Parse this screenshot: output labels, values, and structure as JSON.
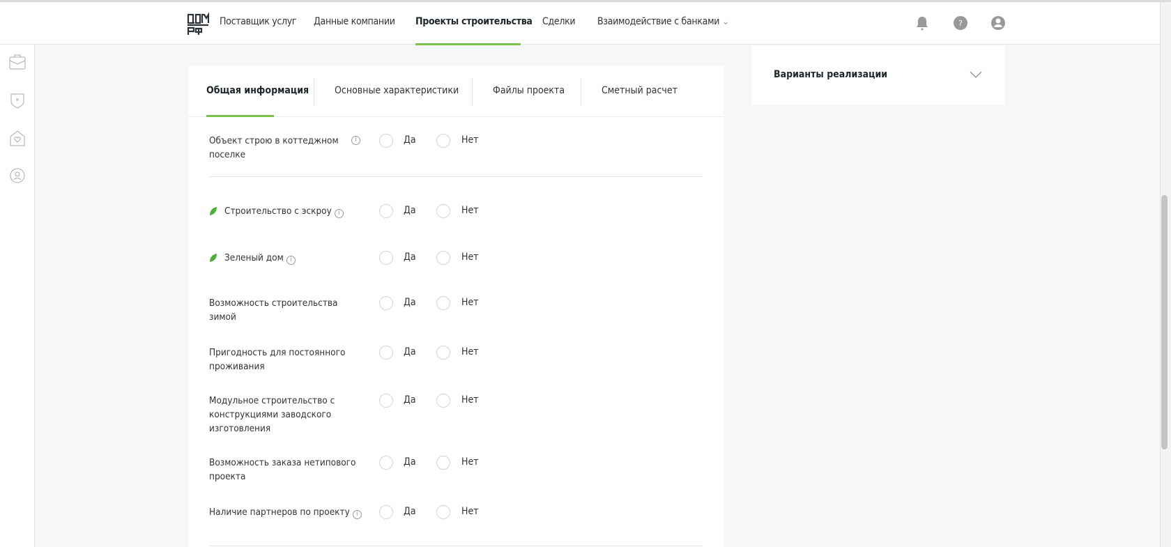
{
  "header": {
    "nav": [
      {
        "label": "Поставщик услуг"
      },
      {
        "label": "Данные компании"
      },
      {
        "label": "Проекты строительства",
        "active": true
      },
      {
        "label": "Сделки"
      },
      {
        "label": "Взаимодействие с банками",
        "dropdown": true
      }
    ],
    "icons": [
      "bell-icon",
      "help-icon",
      "user-icon"
    ]
  },
  "sidebar": {
    "icons": [
      "briefcase-icon",
      "shield-icon",
      "house-heart-icon",
      "person-badge-icon"
    ]
  },
  "tabs": [
    {
      "label": "Общая информация",
      "active": true
    },
    {
      "label": "Основные характеристики"
    },
    {
      "label": "Файлы проекта"
    },
    {
      "label": "Сметный расчет"
    }
  ],
  "options": {
    "yes": "Да",
    "no": "Нет"
  },
  "rows": [
    {
      "label": "Объект строю в коттеджном поселке",
      "info": true,
      "leaf": false
    },
    {
      "label": "Строительство с эскроу",
      "info": true,
      "leaf": true
    },
    {
      "label": "Зеленый дом",
      "info": true,
      "leaf": true
    },
    {
      "label": "Возможность строительства зимой",
      "info": false,
      "leaf": false
    },
    {
      "label": "Пригодность для постоянного проживания",
      "info": false,
      "leaf": false
    },
    {
      "label": "Модульное строительство с конструкциями заводского изготовления",
      "info": false,
      "leaf": false
    },
    {
      "label": "Возможность заказа нетипового проекта",
      "info": false,
      "leaf": false
    },
    {
      "label": "Наличие партнеров по проекту",
      "info": true,
      "leaf": false
    }
  ],
  "right_panel": {
    "title": "Варианты реализации"
  },
  "colors": {
    "accent": "#7cc24a",
    "leaf": "#4caf3a"
  }
}
